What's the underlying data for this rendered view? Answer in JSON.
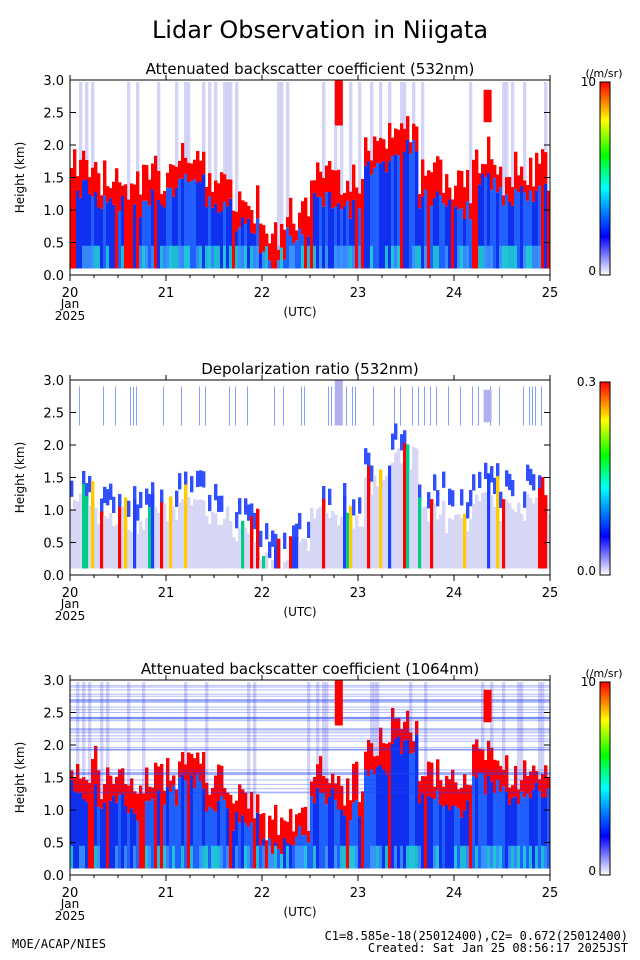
{
  "page": {
    "title": "Lidar Observation in Niigata",
    "credit": "MOE/ACAP/NIES",
    "calibration": "C1=8.585e-18(25012400),C2= 0.672(25012400)",
    "created": "Created: Sat Jan 25 08:56:17 2025JST"
  },
  "colors": {
    "colorbar": [
      "#ffffff",
      "#0000ff",
      "#00ffff",
      "#00ff00",
      "#ffff00",
      "#ff0000"
    ],
    "cloud": "#ff0000",
    "aerosol_low": "#3f9fff",
    "aerosol_high": "#22ddcc"
  },
  "chart_data": [
    {
      "type": "heatmap",
      "title": "Attenuated backscatter coefficient (532nm)",
      "ylabel": "Height (km)",
      "xlabel": "(UTC)",
      "x_ticks": [
        "20",
        "21",
        "22",
        "23",
        "24",
        "25"
      ],
      "x_date": [
        "Jan",
        "2025"
      ],
      "xlim": [
        20,
        25
      ],
      "ylim": [
        0,
        3
      ],
      "y_ticks": [
        "0.0",
        "0.5",
        "1.0",
        "1.5",
        "2.0",
        "2.5",
        "3.0"
      ],
      "colorbar": {
        "unit": "(/m/sr)",
        "max_label": "10",
        "min_label": "0"
      },
      "cloud_base_km": [
        1.3,
        1.1,
        1.0,
        1.2,
        1.4,
        1.1,
        0.8,
        0.4,
        0.6,
        1.2,
        1.0,
        1.6,
        2.0,
        1.2,
        1.0,
        1.4,
        1.2,
        1.3
      ]
    },
    {
      "type": "heatmap",
      "title": "Depolarization ratio (532nm)",
      "ylabel": "Height (km)",
      "xlabel": "(UTC)",
      "x_ticks": [
        "20",
        "21",
        "22",
        "23",
        "24",
        "25"
      ],
      "x_date": [
        "Jan",
        "2025"
      ],
      "xlim": [
        20,
        25
      ],
      "ylim": [
        0,
        3
      ],
      "y_ticks": [
        "0.0",
        "0.5",
        "1.0",
        "1.5",
        "2.0",
        "2.5",
        "3.0"
      ],
      "colorbar": {
        "unit": "",
        "max_label": "0.3",
        "min_label": "0.0"
      },
      "cloud_base_km": [
        1.3,
        1.1,
        1.0,
        1.2,
        1.4,
        1.1,
        0.8,
        0.4,
        0.6,
        1.2,
        1.0,
        1.6,
        2.0,
        1.2,
        1.0,
        1.4,
        1.2,
        1.3
      ]
    },
    {
      "type": "heatmap",
      "title": "Attenuated backscatter coefficient (1064nm)",
      "ylabel": "Height (km)",
      "xlabel": "(UTC)",
      "x_ticks": [
        "20",
        "21",
        "22",
        "23",
        "24",
        "25"
      ],
      "x_date": [
        "Jan",
        "2025"
      ],
      "xlim": [
        20,
        25
      ],
      "ylim": [
        0,
        3
      ],
      "y_ticks": [
        "0.0",
        "0.5",
        "1.0",
        "1.5",
        "2.0",
        "2.5",
        "3.0"
      ],
      "colorbar": {
        "unit": "(/m/sr)",
        "max_label": "10",
        "min_label": "0"
      },
      "cloud_base_km": [
        1.3,
        1.1,
        1.0,
        1.2,
        1.4,
        1.1,
        0.8,
        0.4,
        0.6,
        1.2,
        1.0,
        1.6,
        2.0,
        1.2,
        1.0,
        1.4,
        1.2,
        1.3
      ]
    }
  ]
}
